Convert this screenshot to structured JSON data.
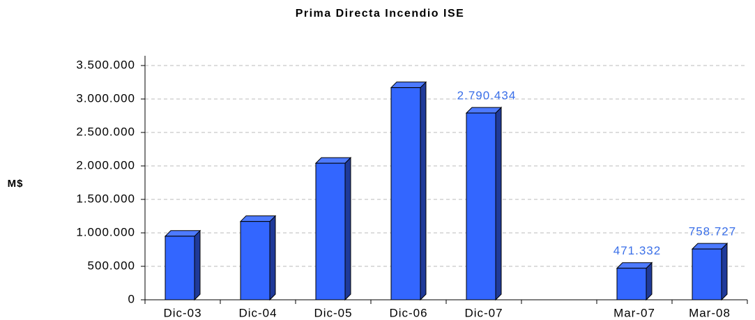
{
  "chart_data": {
    "type": "bar",
    "title": "Prima Directa Incendio ISE",
    "y_label": "M$",
    "categories": [
      "Dic-03",
      "Dic-04",
      "Dic-05",
      "Dic-06",
      "Dic-07",
      null,
      "Mar-07",
      "Mar-08"
    ],
    "values": [
      950000,
      1170000,
      2040000,
      3170000,
      2790434,
      null,
      471332,
      758727
    ],
    "value_labels": [
      null,
      null,
      null,
      null,
      "2.790.434",
      null,
      "471.332",
      "758.727"
    ],
    "color": "#3366ff",
    "ylim": [
      0,
      3500000
    ],
    "yticks": [
      0,
      {
        "value": 500000,
        "label": "500.000"
      },
      {
        "value": 1000000,
        "label": "1.000.000"
      },
      {
        "value": 1500000,
        "label": "1.500.000"
      },
      {
        "value": 2000000,
        "label": "2.000.000"
      },
      {
        "value": 2500000,
        "label": "2.500.000"
      },
      {
        "value": 3000000,
        "label": "3.000.000"
      },
      {
        "value": 3500000,
        "label": "3.500.000"
      }
    ],
    "grid": true
  }
}
